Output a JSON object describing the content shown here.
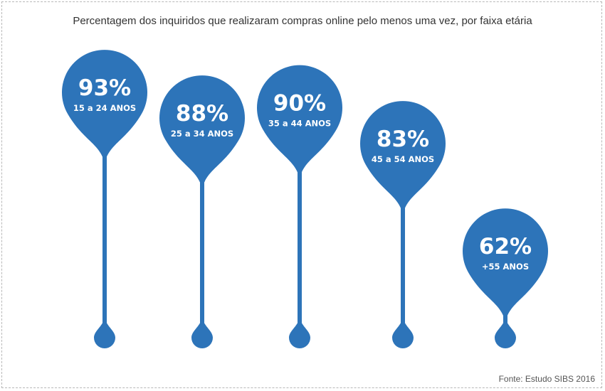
{
  "chart_data": {
    "type": "bar",
    "title": "Percentagem dos inquiridos que realizaram compras online pelo menos uma vez, por faixa etária",
    "categories": [
      "15 a 24 ANOS",
      "25 a 34 ANOS",
      "35 a 44 ANOS",
      "45 a 54 ANOS",
      "+55 ANOS"
    ],
    "values": [
      93,
      88,
      90,
      83,
      62
    ],
    "value_labels": [
      "93%",
      "88%",
      "90%",
      "83%",
      "62%"
    ],
    "unit": "%",
    "color": "#2d74b9",
    "source": "Fonte: Estudo SIBS 2016"
  }
}
